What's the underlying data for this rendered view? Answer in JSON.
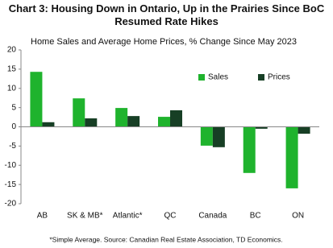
{
  "chart_data": {
    "type": "bar",
    "title": "Chart 3: Housing Down in Ontario, Up in the Prairies Since BoC Resumed Rate Hikes",
    "subtitle": "Home Sales and Average Home Prices, % Change Since May 2023",
    "categories": [
      "AB",
      "SK & MB*",
      "Atlantic*",
      "QC",
      "Canada",
      "BC",
      "ON"
    ],
    "series": [
      {
        "name": "Sales",
        "color": "#1fb32d",
        "values": [
          14.3,
          7.4,
          4.9,
          2.6,
          -4.9,
          -12.0,
          -16.0
        ]
      },
      {
        "name": "Prices",
        "color": "#173f25",
        "values": [
          1.2,
          2.2,
          2.8,
          4.3,
          -5.3,
          -0.5,
          -1.8
        ]
      }
    ],
    "ylim": [
      -20,
      20
    ],
    "yticks": [
      -20,
      -15,
      -10,
      -5,
      0,
      5,
      10,
      15,
      20
    ],
    "grid": false,
    "legend": "top-right",
    "footnote": "*Simple Average. Source: Canadian Real Estate Association, TD Economics."
  }
}
